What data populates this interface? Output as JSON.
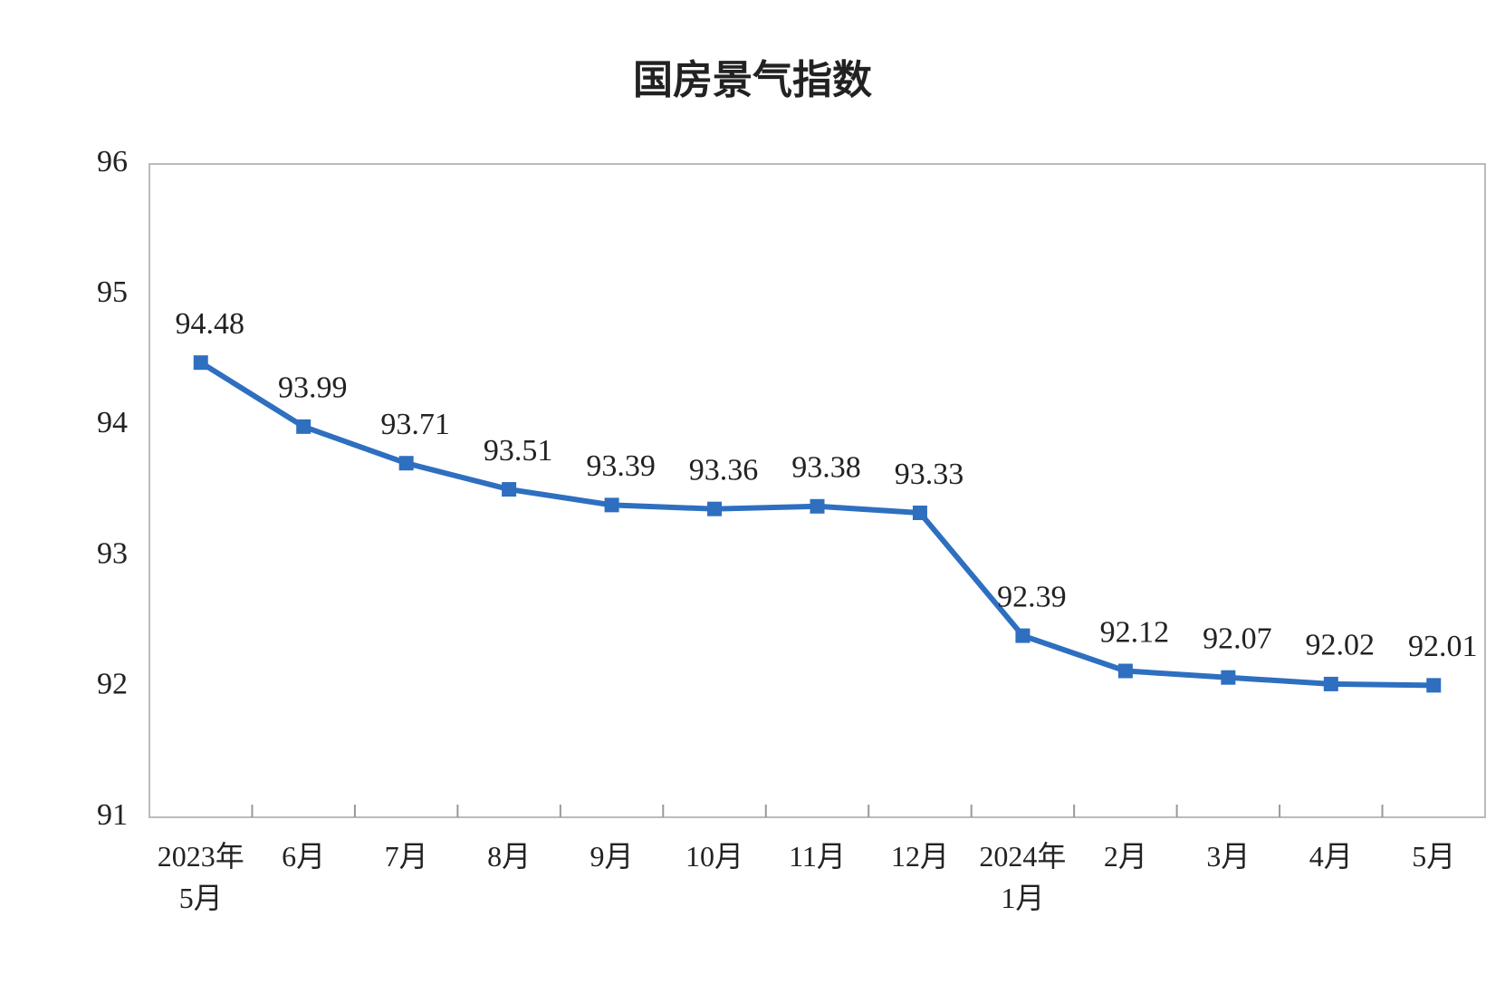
{
  "chart_data": {
    "type": "line",
    "title": "国房景气指数",
    "categories": [
      "2023年\n5月",
      "6月",
      "7月",
      "8月",
      "9月",
      "10月",
      "11月",
      "12月",
      "2024年\n1月",
      "2月",
      "3月",
      "4月",
      "5月"
    ],
    "series": [
      {
        "color": "#2e6fc0",
        "values": [
          94.48,
          93.99,
          93.71,
          93.51,
          93.39,
          93.36,
          93.38,
          93.33,
          92.39,
          92.12,
          92.07,
          92.02,
          92.01
        ]
      }
    ],
    "ylim": [
      91,
      96
    ],
    "yticks": [
      91,
      92,
      93,
      94,
      95,
      96
    ],
    "grid": false
  }
}
